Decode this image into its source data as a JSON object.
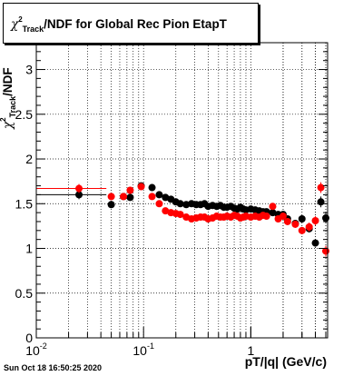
{
  "chart_data": {
    "type": "scatter",
    "title_prefix": "χ",
    "title_sup": "2",
    "title_sub": "Track",
    "title_suffix": "/NDF for Global Rec Pion EtapT",
    "ylabel_prefix": "χ",
    "ylabel_sup": "2",
    "ylabel_sub": "Track",
    "ylabel_suffix": "/NDF",
    "xlabel": "pT/|q| (GeV/c)",
    "timestamp": "Sun Oct 18 16:50:25 2020",
    "xscale": "log",
    "xlim": [
      0.01,
      5.2
    ],
    "ylim": [
      0,
      3.3
    ],
    "grid": true,
    "x_ticks": [
      {
        "value": 0.01,
        "base": "10",
        "exp": "-2"
      },
      {
        "value": 0.1,
        "base": "10",
        "exp": "-1"
      },
      {
        "value": 1,
        "base": "1",
        "exp": ""
      }
    ],
    "y_ticks": [
      0,
      0.5,
      1,
      1.5,
      2,
      2.5,
      3
    ],
    "y_tick_labels": [
      "0",
      "0.5",
      "1",
      "1.5",
      "2",
      "2.5",
      "3"
    ],
    "series": [
      {
        "color": "#000000",
        "x": [
          0.025,
          0.05,
          0.065,
          0.075,
          0.095,
          0.12,
          0.14,
          0.16,
          0.18,
          0.2,
          0.22,
          0.25,
          0.28,
          0.31,
          0.34,
          0.37,
          0.4,
          0.44,
          0.48,
          0.52,
          0.56,
          0.6,
          0.65,
          0.7,
          0.75,
          0.8,
          0.85,
          0.9,
          1.0,
          1.1,
          1.2,
          1.3,
          1.4,
          1.6,
          1.8,
          2.0,
          2.2,
          2.6,
          3.0,
          3.5,
          4.0,
          4.5,
          5.0
        ],
        "y": [
          1.6,
          1.49,
          1.58,
          1.57,
          1.7,
          1.68,
          1.6,
          1.57,
          1.55,
          1.52,
          1.5,
          1.49,
          1.5,
          1.49,
          1.49,
          1.5,
          1.47,
          1.48,
          1.47,
          1.48,
          1.46,
          1.46,
          1.47,
          1.45,
          1.44,
          1.46,
          1.44,
          1.43,
          1.44,
          1.43,
          1.42,
          1.41,
          1.41,
          1.4,
          1.38,
          1.38,
          1.33,
          1.28,
          1.33,
          1.22,
          1.06,
          1.52,
          1.34
        ],
        "yerr": [
          0.05,
          0.03,
          0.03,
          0.03,
          0.03,
          0.02,
          0.02,
          0.02,
          0.02,
          0.02,
          0.02,
          0.02,
          0.02,
          0.02,
          0.02,
          0.02,
          0.02,
          0.02,
          0.02,
          0.02,
          0.02,
          0.02,
          0.02,
          0.02,
          0.02,
          0.02,
          0.02,
          0.02,
          0.02,
          0.02,
          0.02,
          0.02,
          0.02,
          0.02,
          0.02,
          0.03,
          0.03,
          0.03,
          0.04,
          0.04,
          0.04,
          0.06,
          0.06
        ]
      },
      {
        "color": "#ff0000",
        "x": [
          0.025,
          0.05,
          0.065,
          0.075,
          0.095,
          0.12,
          0.14,
          0.16,
          0.18,
          0.2,
          0.22,
          0.25,
          0.28,
          0.31,
          0.34,
          0.37,
          0.4,
          0.44,
          0.48,
          0.52,
          0.56,
          0.6,
          0.65,
          0.7,
          0.75,
          0.8,
          0.85,
          0.9,
          1.0,
          1.1,
          1.2,
          1.3,
          1.4,
          1.6,
          1.8,
          2.0,
          2.2,
          2.6,
          3.0,
          3.5,
          4.0,
          4.5,
          5.0
        ],
        "y": [
          1.67,
          1.58,
          1.58,
          1.65,
          1.69,
          1.58,
          1.5,
          1.42,
          1.4,
          1.39,
          1.38,
          1.35,
          1.33,
          1.34,
          1.35,
          1.35,
          1.33,
          1.34,
          1.36,
          1.35,
          1.35,
          1.36,
          1.35,
          1.37,
          1.36,
          1.34,
          1.35,
          1.36,
          1.35,
          1.36,
          1.35,
          1.37,
          1.36,
          1.47,
          1.33,
          1.36,
          1.3,
          1.27,
          1.2,
          1.24,
          1.31,
          1.68,
          0.97
        ],
        "yerr": [
          0.05,
          0.03,
          0.03,
          0.03,
          0.03,
          0.02,
          0.02,
          0.02,
          0.02,
          0.02,
          0.02,
          0.02,
          0.02,
          0.02,
          0.02,
          0.02,
          0.02,
          0.02,
          0.02,
          0.02,
          0.02,
          0.02,
          0.02,
          0.02,
          0.02,
          0.02,
          0.02,
          0.02,
          0.02,
          0.02,
          0.02,
          0.02,
          0.02,
          0.03,
          0.03,
          0.03,
          0.03,
          0.04,
          0.04,
          0.05,
          0.05,
          0.06,
          0.06
        ]
      }
    ],
    "annotations": [
      {
        "type": "hline",
        "y": 1.67,
        "x_from": 0.01,
        "x_to": 0.045,
        "color": "#ff0000"
      },
      {
        "type": "hline",
        "y": 1.6,
        "x_from": 0.01,
        "x_to": 0.045,
        "color": "#000000"
      }
    ]
  }
}
